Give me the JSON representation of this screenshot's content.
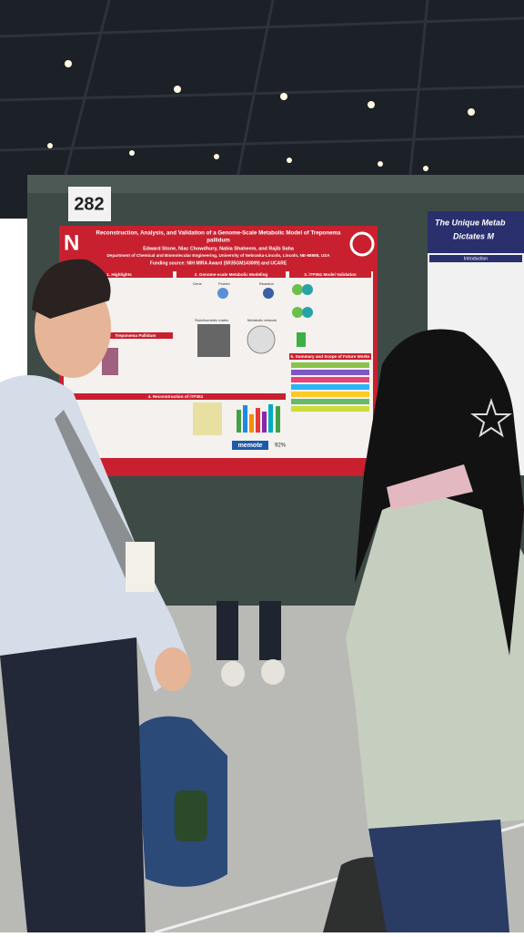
{
  "booth_number": "282",
  "poster": {
    "title_lines": [
      "Reconstruction, Analysis, and Validation of a Genome-Scale Metabolic Model of Treponema",
      "pallidum"
    ],
    "authors": "Edward Stone, Niac Chowdhury, Nabia Shaheem, and Rajib Saha",
    "affiliation": "Department of Chemical and Biomolecular Engineering, University of Nebraska-Lincoln, Lincoln, NE-68588, USA",
    "funding": "Funding source: NIH MIRA Award (5R35GM143009) and UCARE",
    "sections": [
      "1. Highlights",
      "2. Genome-scale Metabolic Modeling",
      "3. iTP351 Model Validation",
      "Treponema Pallidum",
      "4. Reconstruction of iTP351",
      "5. Summary and Scope of Future Works"
    ],
    "diagram_labels": [
      "Gene",
      "Protein",
      "Reaction",
      "Stoichiometric matrix",
      "Metabolic network"
    ],
    "memote": "memote",
    "score": "92%"
  },
  "right_poster": {
    "title_lines": [
      "The Unique Metab",
      "Dictates M"
    ],
    "section": "Introduction"
  }
}
